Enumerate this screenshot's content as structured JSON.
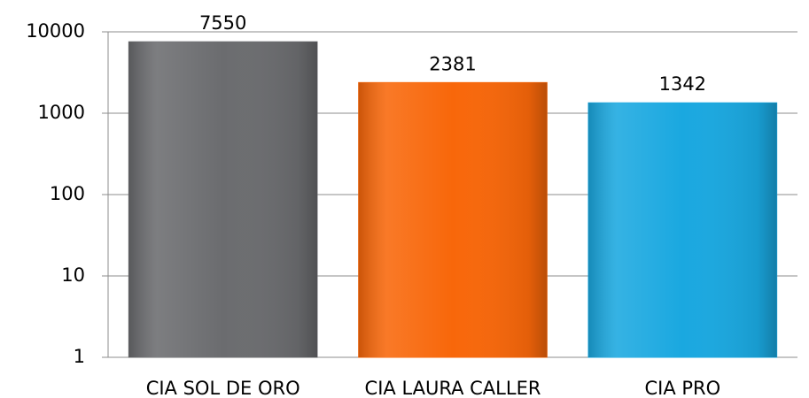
{
  "chart_data": {
    "type": "bar",
    "categories": [
      "CIA SOL DE ORO",
      "CIA LAURA CALLER",
      "CIA PRO"
    ],
    "values": [
      7550,
      2381,
      1342
    ],
    "colors": [
      "#6b6c6f",
      "#f8670a",
      "#1aa8e0"
    ],
    "log_scale": true,
    "ylim": [
      1,
      10000
    ],
    "yticks": [
      1,
      10,
      100,
      1000,
      10000
    ],
    "grid": true
  }
}
